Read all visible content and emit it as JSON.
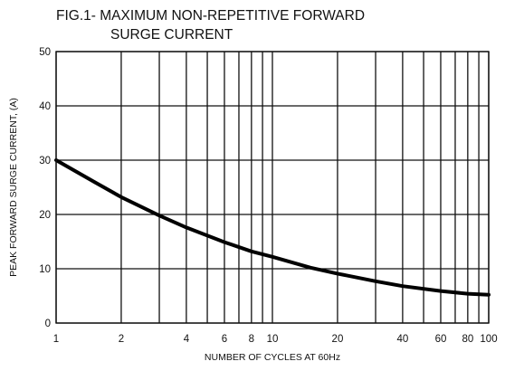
{
  "chart_data": {
    "type": "line",
    "title_lines": [
      "FIG.1- MAXIMUM NON-REPETITIVE FORWARD",
      "SURGE CURRENT"
    ],
    "xlabel": "NUMBER OF CYCLES AT 60Hz",
    "ylabel": "PEAK FORWARD SURGE CURRENT, (A)",
    "x_scale": "log",
    "xlim": [
      1,
      100
    ],
    "ylim": [
      0,
      50
    ],
    "grid": true,
    "x_ticks": [
      1,
      2,
      4,
      6,
      8,
      10,
      20,
      40,
      60,
      80,
      100
    ],
    "x_tick_labels": [
      "1",
      "2",
      "4",
      "6",
      "8",
      "10",
      "20",
      "40",
      "60",
      "80",
      "100"
    ],
    "x_grid": [
      1,
      2,
      3,
      4,
      5,
      6,
      7,
      8,
      9,
      10,
      20,
      30,
      40,
      50,
      60,
      70,
      80,
      90,
      100
    ],
    "y_ticks": [
      0,
      10,
      20,
      30,
      40,
      50
    ],
    "y_tick_labels": [
      "0",
      "10",
      "20",
      "30",
      "40",
      "50"
    ],
    "series": [
      {
        "x": [
          1,
          1.5,
          2,
          3,
          4,
          6,
          8,
          10,
          15,
          20,
          30,
          40,
          60,
          80,
          100
        ],
        "y": [
          30,
          26,
          23.2,
          19.8,
          17.6,
          14.9,
          13.2,
          12.2,
          10.2,
          9.1,
          7.7,
          6.8,
          5.9,
          5.4,
          5.2
        ]
      }
    ]
  }
}
